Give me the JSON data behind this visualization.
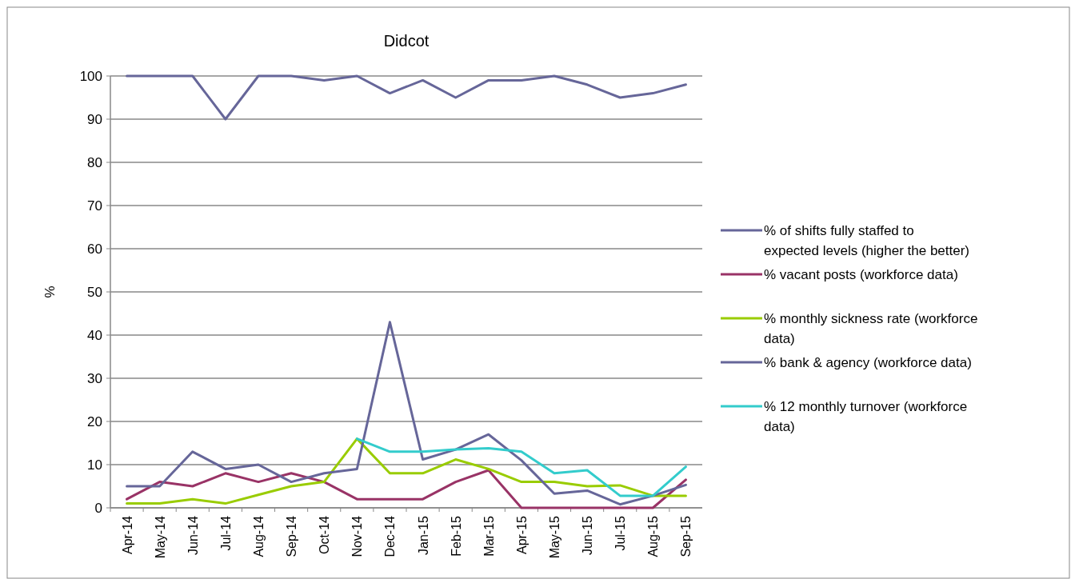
{
  "chart_data": {
    "type": "line",
    "title": "Didcot",
    "ylabel": "%",
    "categories": [
      "Apr-14",
      "May-14",
      "Jun-14",
      "Jul-14",
      "Aug-14",
      "Sep-14",
      "Oct-14",
      "Nov-14",
      "Dec-14",
      "Jan-15",
      "Feb-15",
      "Mar-15",
      "Apr-15",
      "May-15",
      "Jun-15",
      "Jul-15",
      "Aug-15",
      "Sep-15"
    ],
    "series": [
      {
        "name": "% of shifts fully staffed to expected levels (higher the better)",
        "color": "#666699",
        "values": [
          100,
          100,
          100,
          90,
          100,
          100,
          99,
          100,
          96,
          99,
          95,
          99,
          99,
          100,
          98,
          95,
          96,
          98
        ]
      },
      {
        "name": "% vacant posts (workforce data)",
        "color": "#993366",
        "values": [
          2,
          6,
          5,
          8,
          6,
          8,
          6,
          2,
          2,
          2,
          6,
          8.7,
          0,
          0,
          0,
          0,
          0,
          6.5
        ]
      },
      {
        "name": "% monthly sickness rate (workforce data)",
        "color": "#99cc00",
        "values": [
          1,
          1,
          2,
          1,
          3,
          5,
          6,
          16,
          8,
          8,
          11.2,
          9,
          6,
          6,
          5,
          5.2,
          2.8,
          2.8
        ]
      },
      {
        "name": " % bank & agency (workforce data)",
        "color": "#666699",
        "values": [
          5,
          5,
          13,
          9,
          10,
          6,
          8,
          9,
          43,
          11.2,
          13.5,
          17,
          11,
          3.3,
          4,
          0.8,
          2.8,
          5.3
        ]
      },
      {
        "name": "% 12 monthly turnover (workforce data)",
        "color": "#33cccc",
        "values": [
          null,
          null,
          null,
          null,
          null,
          null,
          null,
          16,
          13,
          13,
          13.5,
          13.8,
          13,
          8,
          8.7,
          2.8,
          2.8,
          9.5
        ]
      }
    ],
    "ylim": [
      0,
      100
    ],
    "yticks": [
      0,
      10,
      20,
      30,
      40,
      50,
      60,
      70,
      80,
      90,
      100
    ],
    "grid": "y",
    "legend": "right",
    "marker": "none",
    "line_style": "solid"
  }
}
